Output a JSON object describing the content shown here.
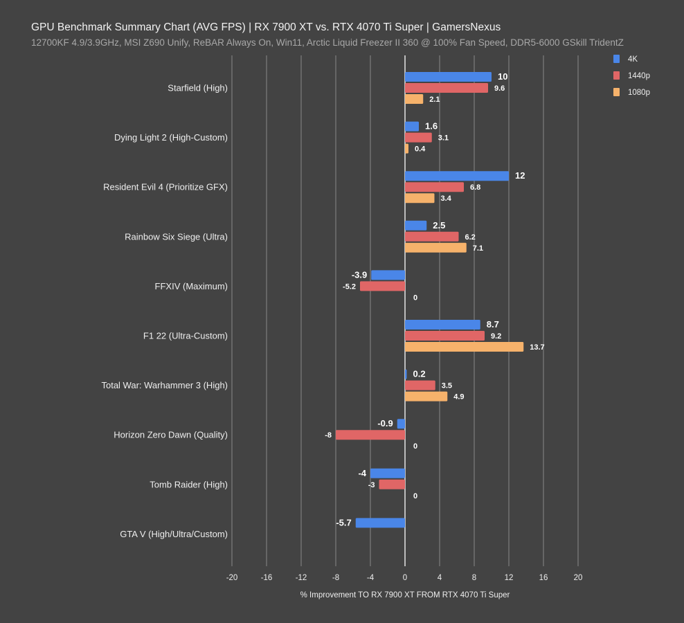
{
  "chart_data": {
    "type": "bar",
    "orientation": "horizontal",
    "title": "GPU Benchmark Summary Chart (AVG FPS) | RX 7900 XT vs. RTX 4070 Ti Super | GamersNexus",
    "subtitle": "12700KF 4.9/3.9GHz, MSI Z690 Unify, ReBAR Always On, Win11, Arctic Liquid Freezer II 360 @ 100% Fan Speed, DDR5-6000 GSkill TridentZ",
    "xlabel": "% Improvement TO RX 7900 XT FROM RTX 4070 Ti Super",
    "ylabel": "",
    "xlim": [
      -20,
      20
    ],
    "xticks": [
      -20,
      -16,
      -12,
      -8,
      -4,
      0,
      4,
      8,
      12,
      16,
      20
    ],
    "grid": true,
    "legend_position": "top-right",
    "categories": [
      "Starfield (High)",
      "Dying Light 2 (High-Custom)",
      "Resident Evil 4 (Prioritize GFX)",
      "Rainbow Six Siege (Ultra)",
      "FFXIV (Maximum)",
      "F1 22 (Ultra-Custom)",
      "Total War: Warhammer 3 (High)",
      "Horizon Zero Dawn (Quality)",
      "Tomb Raider (High)",
      "GTA V (High/Ultra/Custom)"
    ],
    "series": [
      {
        "name": "4K",
        "color": "#4a86e8",
        "values": [
          10,
          1.6,
          12,
          2.5,
          -3.9,
          8.7,
          0.2,
          -0.9,
          -4,
          -5.7
        ]
      },
      {
        "name": "1440p",
        "color": "#e06666",
        "values": [
          9.6,
          3.1,
          6.8,
          6.2,
          -5.2,
          9.2,
          3.5,
          -8,
          -3,
          null
        ]
      },
      {
        "name": "1080p",
        "color": "#f6b26b",
        "values": [
          2.1,
          0.4,
          3.4,
          7.1,
          0,
          13.7,
          4.9,
          0,
          0,
          null
        ]
      }
    ]
  }
}
